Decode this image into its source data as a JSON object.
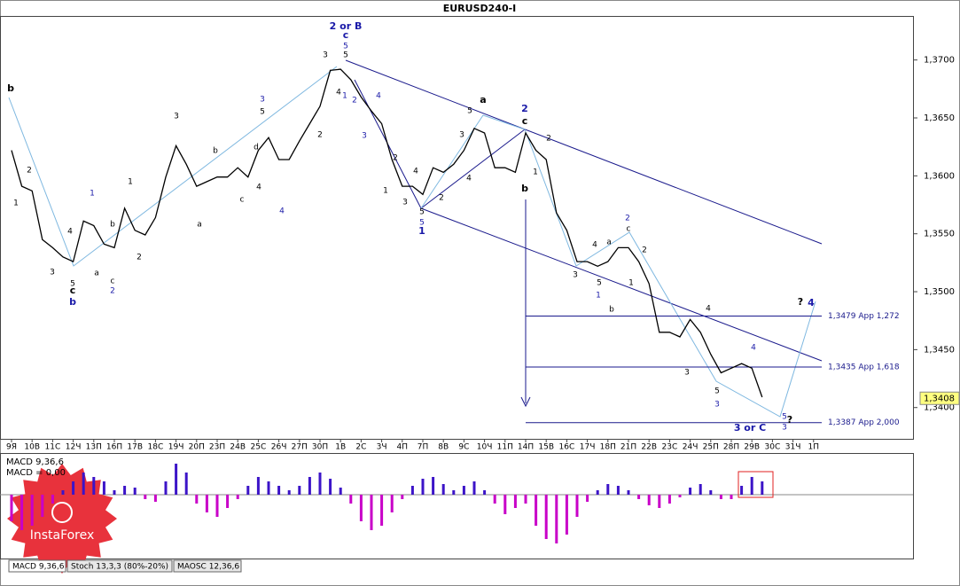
{
  "chart_data": {
    "type": "line",
    "title": "EURUSD240-I",
    "color": "#000000",
    "categories": [
      "9Я",
      null,
      "10В",
      null,
      "11С",
      null,
      "12Ч",
      null,
      "13П",
      null,
      "16П",
      null,
      "17В",
      null,
      "18С",
      null,
      "19Ч",
      null,
      "20П",
      null,
      "23П",
      null,
      "24В",
      null,
      "25С",
      null,
      "26Ч",
      null,
      "27П",
      null,
      "30П",
      null,
      "1В",
      null,
      "2С",
      null,
      "3Ч",
      null,
      "4П",
      null,
      "7П",
      null,
      "8В",
      null,
      "9С",
      null,
      "10Ч",
      null,
      "11П",
      null,
      "14П",
      null,
      "15В",
      null,
      "16С",
      null,
      "17Ч",
      null,
      "18П",
      null,
      "21П",
      null,
      "22В",
      null,
      "23С",
      null,
      "24Ч",
      null,
      "25П",
      null,
      "28П",
      null,
      "29В",
      null,
      "30С",
      null,
      "31Ч",
      null,
      "1П",
      null
    ],
    "values": [
      1.3622,
      1.3591,
      1.3587,
      1.3545,
      1.3538,
      1.353,
      1.3526,
      1.3561,
      1.3557,
      1.3541,
      1.3538,
      1.3572,
      1.3553,
      1.3549,
      1.3564,
      1.3599,
      1.3626,
      1.361,
      1.3591,
      1.3595,
      1.3599,
      1.3599,
      1.3607,
      1.3599,
      1.3622,
      1.3633,
      1.3614,
      1.3614,
      1.363,
      1.3645,
      1.366,
      1.3691,
      1.3692,
      1.3683,
      1.3668,
      1.3656,
      1.3645,
      1.3614,
      1.3591,
      1.3591,
      1.3584,
      1.3607,
      1.3603,
      1.361,
      1.3622,
      1.3641,
      1.3637,
      1.3607,
      1.3607,
      1.3603,
      1.3637,
      1.3622,
      1.3614,
      1.3568,
      1.3553,
      1.3526,
      1.3526,
      1.3522,
      1.3526,
      1.3538,
      1.3538,
      1.3526,
      1.3507,
      1.3465,
      1.3465,
      1.3461,
      1.3476,
      1.3465,
      1.3446,
      1.343,
      1.3434,
      1.3438,
      1.3434,
      1.3409,
      null,
      null,
      null,
      null,
      null,
      null
    ],
    "ylim": [
      1.3373,
      1.3738
    ],
    "yticks": [
      {
        "value": 1.34,
        "label": "1,3400"
      },
      {
        "value": 1.345,
        "label": "1,3450"
      },
      {
        "value": 1.35,
        "label": "1,3500"
      },
      {
        "value": 1.355,
        "label": "1,3550"
      },
      {
        "value": 1.36,
        "label": "1,3600"
      },
      {
        "value": 1.365,
        "label": "1,3650"
      },
      {
        "value": 1.37,
        "label": "1,3700"
      }
    ],
    "levels": [
      {
        "value": 1.3479,
        "label": "1,3479 App 1,272"
      },
      {
        "value": 1.3435,
        "label": "1,3435 App 1,618"
      },
      {
        "value": 1.3387,
        "label": "1,3387 App 2,000"
      }
    ],
    "last_price": {
      "value": 1.3408,
      "label": "1,3408"
    },
    "annotations": [
      "2 or B",
      "c",
      "5",
      "b",
      "3",
      "5",
      "4",
      "2",
      "1",
      "3",
      "4",
      "3",
      "a",
      "5",
      "2",
      "c",
      "b",
      "2",
      "1",
      "3",
      "5",
      "d",
      "b",
      "2",
      "1",
      "3",
      "4",
      "5",
      "c",
      "b",
      "1",
      "2",
      "a",
      "c",
      "b",
      "2",
      "1",
      "a",
      "c",
      "4",
      "4",
      "2",
      "1",
      "2",
      "3",
      "4",
      "5",
      "5",
      "1",
      "2",
      "4",
      "3",
      "3",
      "4",
      "a",
      "c",
      "2",
      "2",
      "5",
      "1",
      "1",
      "b",
      "4",
      "3",
      "5",
      "3",
      "4",
      "3 or C",
      "5",
      "3",
      "?",
      "?",
      "4"
    ],
    "macd": {
      "title": "MACD 9,36,6",
      "readout": "MACD = 0,00",
      "up_color": "#3c14c8",
      "down_color": "#c800c8",
      "ylim": [
        -72,
        46
      ],
      "values": [
        -30,
        -40,
        -35,
        -25,
        -10,
        5,
        15,
        25,
        20,
        15,
        5,
        10,
        8,
        -5,
        -8,
        15,
        35,
        25,
        -10,
        -20,
        -25,
        -15,
        -5,
        10,
        20,
        15,
        10,
        5,
        10,
        20,
        25,
        18,
        8,
        -10,
        -30,
        -40,
        -35,
        -20,
        -5,
        10,
        18,
        20,
        12,
        5,
        10,
        15,
        5,
        -10,
        -22,
        -15,
        -10,
        -35,
        -50,
        -55,
        -45,
        -25,
        -8,
        5,
        12,
        10,
        5,
        -5,
        -12,
        -15,
        -10,
        -3,
        8,
        12,
        5,
        -5,
        -5,
        10,
        20,
        15,
        null,
        null,
        null,
        null,
        null,
        null
      ]
    },
    "tabs": [
      "MACD 9,36,6",
      "Stoch 13,3,3 (80%-20%)",
      "MAOSC 12,36,6"
    ],
    "logo": "InstaForex"
  }
}
